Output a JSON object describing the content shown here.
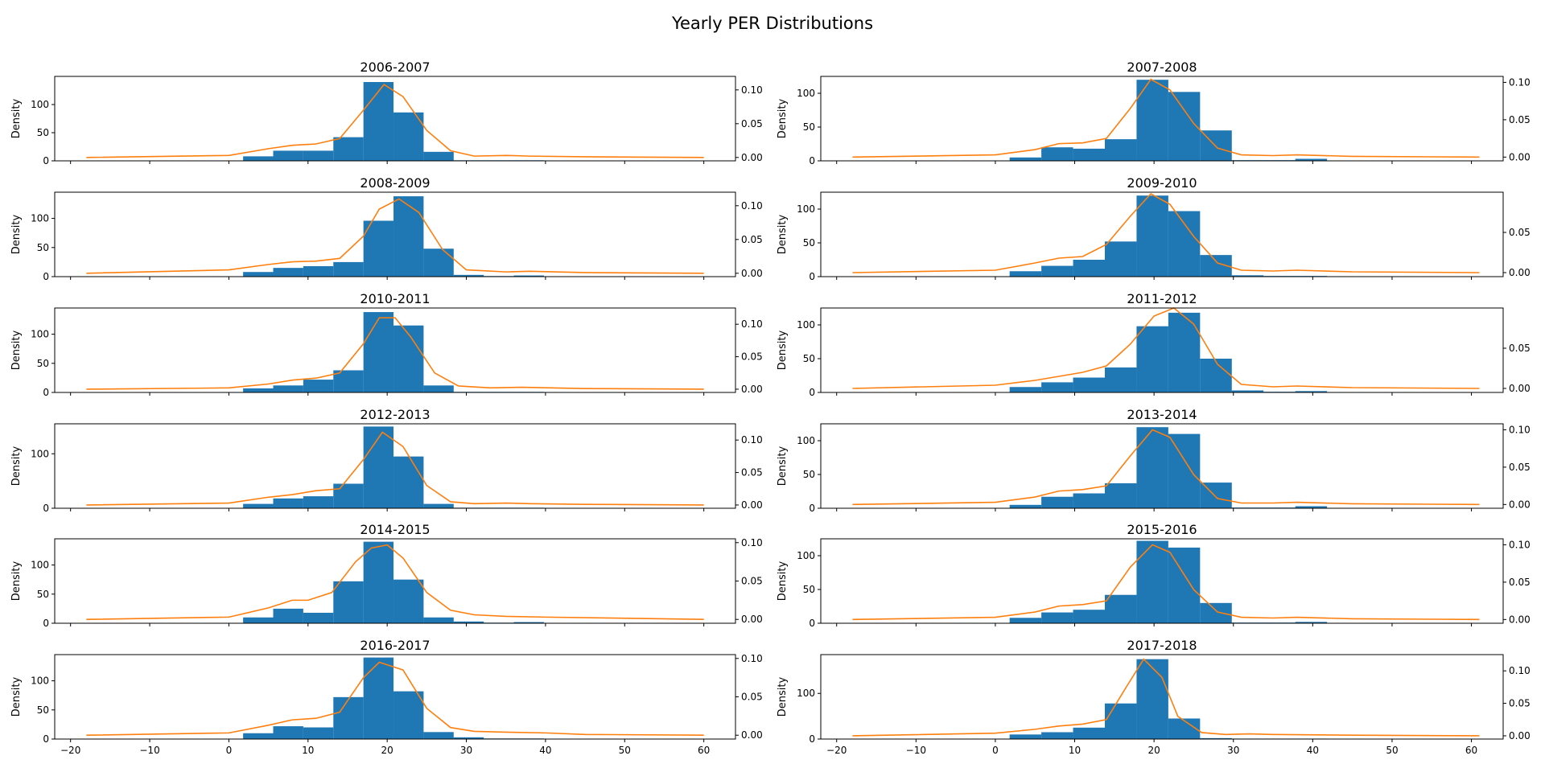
{
  "figure": {
    "title": "Yearly PER Distributions",
    "colors": {
      "hist": "#1f77b4",
      "kde": "#ff7f0e",
      "axis": "#000000"
    },
    "ylabel": "Density"
  },
  "chart_data": [
    {
      "type": "bar",
      "title": "2006-2007",
      "bin_edges": [
        1.8,
        5.6,
        9.4,
        13.2,
        17.0,
        20.8,
        24.6,
        28.4,
        32.2,
        36.0,
        39.8
      ],
      "counts": [
        8,
        18,
        18,
        42,
        140,
        86,
        16,
        1,
        1,
        1
      ],
      "ylim": [
        0,
        150
      ],
      "yticks": [
        0,
        50,
        100
      ],
      "kde": {
        "x": [
          -18,
          0,
          5,
          8,
          11,
          14,
          17,
          19.6,
          22,
          25,
          28,
          31,
          35,
          38,
          45,
          60
        ],
        "y": [
          0,
          0.003,
          0.013,
          0.018,
          0.02,
          0.028,
          0.07,
          0.108,
          0.09,
          0.04,
          0.01,
          0.002,
          0.003,
          0.002,
          0.001,
          0
        ],
        "ylim": [
          -0.005,
          0.12
        ],
        "ticks": [
          0,
          0.05,
          0.1
        ],
        "tick_labels": [
          "0.00",
          "0.05",
          "0.10"
        ]
      },
      "xlim": [
        -22,
        64
      ],
      "xticks": [
        -20,
        -10,
        0,
        10,
        20,
        30,
        40,
        50,
        60
      ]
    },
    {
      "type": "bar",
      "title": "2007-2008",
      "bin_edges": [
        1.8,
        5.8,
        9.8,
        13.8,
        17.8,
        21.8,
        25.8,
        29.8,
        33.8,
        37.8,
        41.8
      ],
      "counts": [
        5,
        20,
        18,
        32,
        120,
        102,
        45,
        1,
        1,
        3
      ],
      "ylim": [
        0,
        125
      ],
      "yticks": [
        0,
        50,
        100
      ],
      "kde": {
        "x": [
          -18,
          0,
          5,
          8,
          11,
          14,
          17,
          19.6,
          22,
          25,
          28,
          31,
          35,
          38,
          45,
          61
        ],
        "y": [
          0,
          0.003,
          0.01,
          0.018,
          0.019,
          0.025,
          0.065,
          0.104,
          0.09,
          0.045,
          0.012,
          0.003,
          0.002,
          0.003,
          0.001,
          0
        ],
        "ylim": [
          -0.005,
          0.108
        ],
        "ticks": [
          0,
          0.05,
          0.1
        ],
        "tick_labels": [
          "0.00",
          "0.05",
          "0.10"
        ]
      },
      "xlim": [
        -22,
        64
      ],
      "xticks": [
        -20,
        -10,
        0,
        10,
        20,
        30,
        40,
        50,
        60
      ]
    },
    {
      "type": "bar",
      "title": "2008-2009",
      "bin_edges": [
        1.8,
        5.6,
        9.4,
        13.2,
        17.0,
        20.8,
        24.6,
        28.4,
        32.2,
        36.0,
        39.8
      ],
      "counts": [
        8,
        15,
        18,
        25,
        96,
        138,
        48,
        3,
        1,
        2
      ],
      "ylim": [
        0,
        145
      ],
      "yticks": [
        0,
        50,
        100
      ],
      "kde": {
        "x": [
          -18,
          0,
          5,
          8,
          11,
          14,
          17,
          19,
          21.5,
          24,
          27,
          30,
          35,
          38,
          45,
          60
        ],
        "y": [
          0,
          0.005,
          0.013,
          0.017,
          0.018,
          0.022,
          0.055,
          0.095,
          0.11,
          0.09,
          0.035,
          0.005,
          0.002,
          0.003,
          0.001,
          0
        ],
        "ylim": [
          -0.005,
          0.12
        ],
        "ticks": [
          0,
          0.05,
          0.1
        ],
        "tick_labels": [
          "0.00",
          "0.05",
          "0.10"
        ]
      },
      "xlim": [
        -22,
        64
      ],
      "xticks": [
        -20,
        -10,
        0,
        10,
        20,
        30,
        40,
        50,
        60
      ]
    },
    {
      "type": "bar",
      "title": "2009-2010",
      "bin_edges": [
        1.8,
        5.8,
        9.8,
        13.8,
        17.8,
        21.8,
        25.8,
        29.8,
        33.8,
        37.8,
        41.8
      ],
      "counts": [
        8,
        16,
        25,
        52,
        120,
        97,
        32,
        2,
        1,
        1
      ],
      "ylim": [
        0,
        125
      ],
      "yticks": [
        0,
        50,
        100
      ],
      "kde": {
        "x": [
          -18,
          0,
          5,
          8,
          11,
          14,
          17,
          19.6,
          22,
          25,
          28,
          31,
          35,
          38,
          45,
          61
        ],
        "y": [
          0,
          0.003,
          0.012,
          0.018,
          0.02,
          0.035,
          0.07,
          0.098,
          0.085,
          0.045,
          0.012,
          0.003,
          0.002,
          0.003,
          0.001,
          0
        ],
        "ylim": [
          -0.005,
          0.1
        ],
        "ticks": [
          0,
          0.05
        ],
        "tick_labels": [
          "0.00",
          "0.05"
        ]
      },
      "xlim": [
        -22,
        64
      ],
      "xticks": [
        -20,
        -10,
        0,
        10,
        20,
        30,
        40,
        50,
        60
      ]
    },
    {
      "type": "bar",
      "title": "2010-2011",
      "bin_edges": [
        1.8,
        5.6,
        9.4,
        13.2,
        17.0,
        20.8,
        24.6,
        28.4,
        32.2,
        36.0,
        39.8
      ],
      "counts": [
        7,
        12,
        22,
        38,
        138,
        115,
        12,
        1,
        1,
        1
      ],
      "ylim": [
        0,
        145
      ],
      "yticks": [
        0,
        50,
        100
      ],
      "kde": {
        "x": [
          -18,
          0,
          5,
          8,
          11,
          14,
          17,
          19,
          21,
          23,
          26,
          29,
          33,
          37,
          45,
          60
        ],
        "y": [
          0,
          0.002,
          0.008,
          0.014,
          0.017,
          0.025,
          0.07,
          0.11,
          0.11,
          0.08,
          0.025,
          0.005,
          0.002,
          0.003,
          0.001,
          0
        ],
        "ylim": [
          -0.005,
          0.125
        ],
        "ticks": [
          0,
          0.05,
          0.1
        ],
        "tick_labels": [
          "0.00",
          "0.05",
          "0.10"
        ]
      },
      "xlim": [
        -22,
        64
      ],
      "xticks": [
        -20,
        -10,
        0,
        10,
        20,
        30,
        40,
        50,
        60
      ]
    },
    {
      "type": "bar",
      "title": "2011-2012",
      "bin_edges": [
        1.8,
        5.8,
        9.8,
        13.8,
        17.8,
        21.8,
        25.8,
        29.8,
        33.8,
        37.8,
        41.8
      ],
      "counts": [
        8,
        15,
        22,
        37,
        98,
        118,
        50,
        3,
        1,
        2
      ],
      "ylim": [
        0,
        125
      ],
      "yticks": [
        0,
        50,
        100
      ],
      "kde": {
        "x": [
          -18,
          0,
          5,
          8,
          11,
          14,
          17,
          20,
          22.5,
          25,
          28,
          31,
          35,
          38,
          45,
          61
        ],
        "y": [
          0,
          0.004,
          0.01,
          0.015,
          0.02,
          0.028,
          0.055,
          0.09,
          0.1,
          0.08,
          0.03,
          0.005,
          0.002,
          0.003,
          0.001,
          0
        ],
        "ylim": [
          -0.005,
          0.1
        ],
        "ticks": [
          0,
          0.05
        ],
        "tick_labels": [
          "0.00",
          "0.05"
        ]
      },
      "xlim": [
        -22,
        64
      ],
      "xticks": [
        -20,
        -10,
        0,
        10,
        20,
        30,
        40,
        50,
        60
      ]
    },
    {
      "type": "bar",
      "title": "2012-2013",
      "bin_edges": [
        1.8,
        5.6,
        9.4,
        13.2,
        17.0,
        20.8,
        24.6,
        28.4,
        32.2,
        36.0,
        39.8
      ],
      "counts": [
        8,
        18,
        22,
        45,
        150,
        95,
        8,
        1,
        1,
        1
      ],
      "ylim": [
        0,
        155
      ],
      "yticks": [
        0,
        100
      ],
      "kde": {
        "x": [
          -18,
          0,
          5,
          8,
          11,
          14,
          17,
          19.4,
          22,
          25,
          28,
          31,
          35,
          38,
          45,
          60
        ],
        "y": [
          0,
          0.003,
          0.012,
          0.016,
          0.022,
          0.025,
          0.07,
          0.112,
          0.09,
          0.03,
          0.005,
          0.002,
          0.003,
          0.002,
          0.001,
          0
        ],
        "ylim": [
          -0.005,
          0.125
        ],
        "ticks": [
          0,
          0.05,
          0.1
        ],
        "tick_labels": [
          "0.00",
          "0.05",
          "0.10"
        ]
      },
      "xlim": [
        -22,
        64
      ],
      "xticks": [
        -20,
        -10,
        0,
        10,
        20,
        30,
        40,
        50,
        60
      ]
    },
    {
      "type": "bar",
      "title": "2013-2014",
      "bin_edges": [
        1.8,
        5.8,
        9.8,
        13.8,
        17.8,
        21.8,
        25.8,
        29.8,
        33.8,
        37.8,
        41.8
      ],
      "counts": [
        5,
        17,
        22,
        37,
        120,
        110,
        38,
        1,
        1,
        3
      ],
      "ylim": [
        0,
        125
      ],
      "yticks": [
        0,
        50,
        100
      ],
      "kde": {
        "x": [
          -18,
          0,
          5,
          8,
          11,
          14,
          17,
          19.8,
          22,
          25,
          28,
          31,
          35,
          38,
          45,
          61
        ],
        "y": [
          0,
          0.003,
          0.01,
          0.018,
          0.02,
          0.025,
          0.065,
          0.1,
          0.09,
          0.04,
          0.008,
          0.002,
          0.002,
          0.003,
          0.001,
          0
        ],
        "ylim": [
          -0.005,
          0.108
        ],
        "ticks": [
          0,
          0.05,
          0.1
        ],
        "tick_labels": [
          "0.00",
          "0.05",
          "0.10"
        ]
      },
      "xlim": [
        -22,
        64
      ],
      "xticks": [
        -20,
        -10,
        0,
        10,
        20,
        30,
        40,
        50,
        60
      ]
    },
    {
      "type": "bar",
      "title": "2014-2015",
      "bin_edges": [
        1.8,
        5.6,
        9.4,
        13.2,
        17.0,
        20.8,
        24.6,
        28.4,
        32.2,
        36.0,
        39.8
      ],
      "counts": [
        10,
        25,
        18,
        72,
        140,
        75,
        10,
        3,
        1,
        2
      ],
      "ylim": [
        0,
        145
      ],
      "yticks": [
        0,
        50,
        100
      ],
      "kde": {
        "x": [
          -18,
          0,
          5,
          8,
          10,
          13,
          16,
          18,
          20,
          22,
          25,
          28,
          31,
          35,
          40,
          60
        ],
        "y": [
          0,
          0.003,
          0.015,
          0.025,
          0.025,
          0.035,
          0.075,
          0.093,
          0.097,
          0.08,
          0.035,
          0.012,
          0.006,
          0.004,
          0.003,
          0
        ],
        "ylim": [
          -0.005,
          0.105
        ],
        "ticks": [
          0,
          0.05,
          0.1
        ],
        "tick_labels": [
          "0.00",
          "0.05",
          "0.10"
        ]
      },
      "xlim": [
        -22,
        64
      ],
      "xticks": [
        -20,
        -10,
        0,
        10,
        20,
        30,
        40,
        50,
        60
      ]
    },
    {
      "type": "bar",
      "title": "2015-2016",
      "bin_edges": [
        1.8,
        5.8,
        9.8,
        13.8,
        17.8,
        21.8,
        25.8,
        29.8,
        33.8,
        37.8,
        41.8
      ],
      "counts": [
        8,
        16,
        20,
        42,
        122,
        112,
        30,
        1,
        1,
        2
      ],
      "ylim": [
        0,
        125
      ],
      "yticks": [
        0,
        50,
        100
      ],
      "kde": {
        "x": [
          -18,
          0,
          5,
          8,
          11,
          14,
          17,
          19.8,
          22,
          25,
          28,
          31,
          35,
          38,
          45,
          61
        ],
        "y": [
          0,
          0.003,
          0.01,
          0.018,
          0.02,
          0.025,
          0.07,
          0.1,
          0.09,
          0.04,
          0.01,
          0.003,
          0.002,
          0.003,
          0.001,
          0
        ],
        "ylim": [
          -0.005,
          0.108
        ],
        "ticks": [
          0,
          0.05,
          0.1
        ],
        "tick_labels": [
          "0.00",
          "0.05",
          "0.10"
        ]
      },
      "xlim": [
        -22,
        64
      ],
      "xticks": [
        -20,
        -10,
        0,
        10,
        20,
        30,
        40,
        50,
        60
      ]
    },
    {
      "type": "bar",
      "title": "2016-2017",
      "bin_edges": [
        1.8,
        5.6,
        9.4,
        13.2,
        17.0,
        20.8,
        24.6,
        28.4,
        32.2,
        36.0,
        39.8
      ],
      "counts": [
        10,
        22,
        20,
        72,
        140,
        82,
        12,
        3,
        1,
        1
      ],
      "ylim": [
        0,
        145
      ],
      "yticks": [
        0,
        50,
        100
      ],
      "kde": {
        "x": [
          -18,
          0,
          5,
          8,
          11,
          14,
          17,
          19,
          22,
          25,
          28,
          31,
          35,
          40,
          45,
          60
        ],
        "y": [
          0,
          0.003,
          0.013,
          0.02,
          0.022,
          0.03,
          0.075,
          0.095,
          0.085,
          0.035,
          0.01,
          0.005,
          0.004,
          0.003,
          0.001,
          0
        ],
        "ylim": [
          -0.005,
          0.105
        ],
        "ticks": [
          0,
          0.05,
          0.1
        ],
        "tick_labels": [
          "0.00",
          "0.05",
          "0.10"
        ]
      },
      "xlim": [
        -22,
        64
      ],
      "xticks": [
        -20,
        -10,
        0,
        10,
        20,
        30,
        40,
        50,
        60
      ]
    },
    {
      "type": "bar",
      "title": "2017-2018",
      "bin_edges": [
        1.8,
        5.8,
        9.8,
        13.8,
        17.8,
        21.8,
        25.8,
        29.8,
        33.8,
        37.8,
        41.8
      ],
      "counts": [
        10,
        15,
        25,
        78,
        175,
        45,
        2,
        1,
        1,
        1
      ],
      "ylim": [
        0,
        185
      ],
      "yticks": [
        0,
        100
      ],
      "kde": {
        "x": [
          -18,
          0,
          5,
          8,
          11,
          14,
          16.5,
          18.7,
          21,
          23,
          26,
          29,
          32,
          35,
          45,
          61
        ],
        "y": [
          0,
          0.004,
          0.01,
          0.015,
          0.018,
          0.025,
          0.075,
          0.118,
          0.09,
          0.03,
          0.005,
          0.002,
          0.003,
          0.002,
          0.001,
          0
        ],
        "ylim": [
          -0.005,
          0.125
        ],
        "ticks": [
          0,
          0.05,
          0.1
        ],
        "tick_labels": [
          "0.00",
          "0.05",
          "0.10"
        ]
      },
      "xlim": [
        -22,
        64
      ],
      "xticks": [
        -20,
        -10,
        0,
        10,
        20,
        30,
        40,
        50,
        60
      ]
    }
  ]
}
